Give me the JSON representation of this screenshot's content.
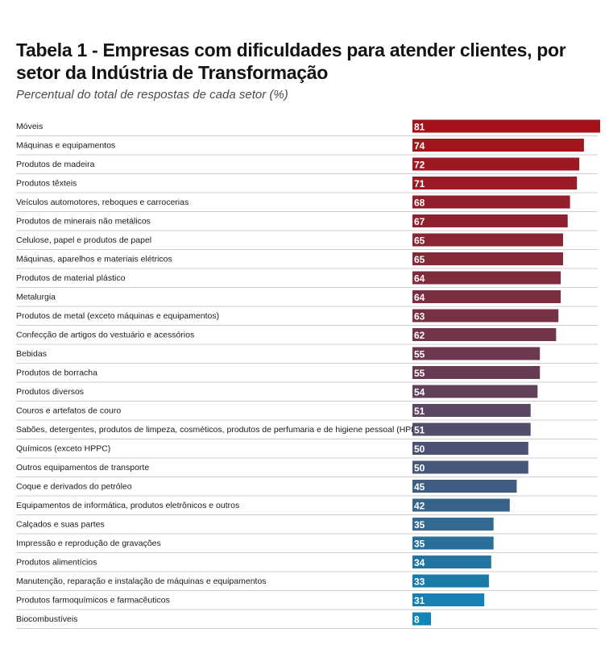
{
  "header": {
    "title": "Tabela 1 - Empresas com dificuldades para atender clientes, por setor da Indústria de Transformação",
    "subtitle": "Percentual do total de respostas de cada setor (%)"
  },
  "chart_data": {
    "type": "bar",
    "orientation": "horizontal",
    "title": "Tabela 1 - Empresas com dificuldades para atender clientes, por setor da Indústria de Transformação",
    "subtitle": "Percentual do total de respostas de cada setor (%)",
    "xlim": [
      0,
      81
    ],
    "grid": false,
    "color_gradient": [
      "#a61219",
      "#0e86b9"
    ],
    "categories": [
      "Móveis",
      "Máquinas e equipamentos",
      "Produtos de madeira",
      "Produtos têxteis",
      "Veículos automotores, reboques e carrocerias",
      "Produtos de minerais não metálicos",
      "Celulose, papel e produtos de papel",
      "Máquinas, aparelhos e materiais elétricos",
      "Produtos de material plástico",
      "Metalurgia",
      "Produtos de metal (exceto máquinas e equipamentos)",
      "Confecção de artigos do vestuário e acessórios",
      "Bebidas",
      "Produtos de borracha",
      "Produtos diversos",
      "Couros e artefatos de couro",
      "Sabões, detergentes, produtos de limpeza, cosméticos, produtos de perfumaria e de higiene pessoal (HPPC)",
      "Químicos (exceto HPPC)",
      "Outros equipamentos de transporte",
      "Coque e derivados do petróleo",
      "Equipamentos de informática, produtos eletrônicos e outros",
      "Calçados e suas partes",
      "Impressão e reprodução de gravações",
      "Produtos alimentícios",
      "Manutenção, reparação e instalação de máquinas e equipamentos",
      "Produtos farmoquímicos e farmacêuticos",
      "Biocombustíveis"
    ],
    "values": [
      81,
      74,
      72,
      71,
      68,
      67,
      65,
      65,
      64,
      64,
      63,
      62,
      55,
      55,
      54,
      51,
      51,
      50,
      50,
      45,
      42,
      35,
      35,
      34,
      33,
      31,
      8
    ]
  }
}
